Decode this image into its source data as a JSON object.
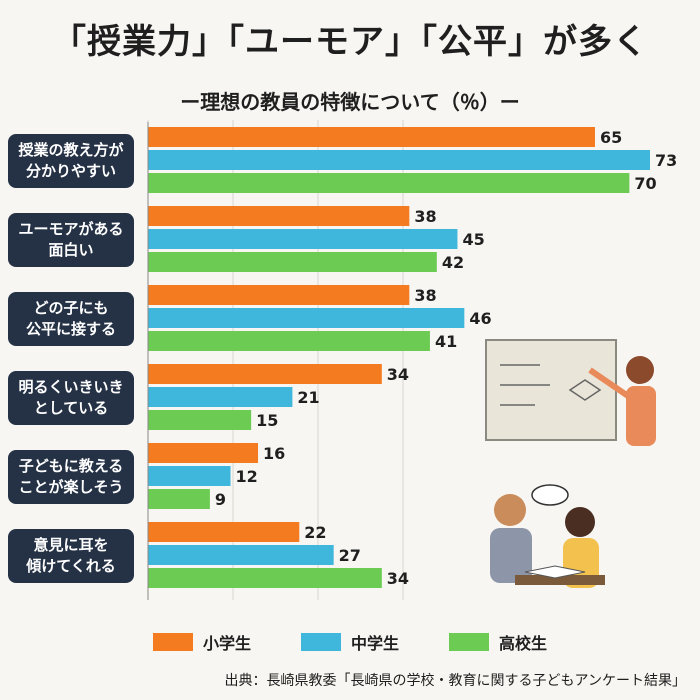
{
  "title": "「授業力」「ユーモア」「公平」が多く",
  "subtitle": "ー理想の教員の特徴について（％）ー",
  "colors": {
    "elementary": "#f47b20",
    "junior": "#3fb6dc",
    "high": "#6ccb53",
    "label_bg": "#253246"
  },
  "chart_data": {
    "type": "bar",
    "orientation": "horizontal",
    "categories": [
      {
        "line1": "授業の教え方が",
        "line2": "分かりやすい"
      },
      {
        "line1": "ユーモアがある",
        "line2": "面白い"
      },
      {
        "line1": "どの子にも",
        "line2": "公平に接する"
      },
      {
        "line1": "明るくいきいき",
        "line2": "としている"
      },
      {
        "line1": "子どもに教える",
        "line2": "ことが楽しそう"
      },
      {
        "line1": "意見に耳を",
        "line2": "傾けてくれる"
      }
    ],
    "series": [
      {
        "name": "小学生",
        "values": [
          65,
          38,
          38,
          34,
          16,
          22
        ]
      },
      {
        "name": "中学生",
        "values": [
          73,
          45,
          46,
          21,
          12,
          27
        ]
      },
      {
        "name": "高校生",
        "values": [
          70,
          42,
          41,
          15,
          9,
          34
        ]
      }
    ],
    "xlim": [
      0,
      80
    ],
    "grid": true,
    "legend_position": "bottom"
  },
  "source": "出典：長崎県教委「長崎県の学校・教育に関する子どもアンケート結果」"
}
